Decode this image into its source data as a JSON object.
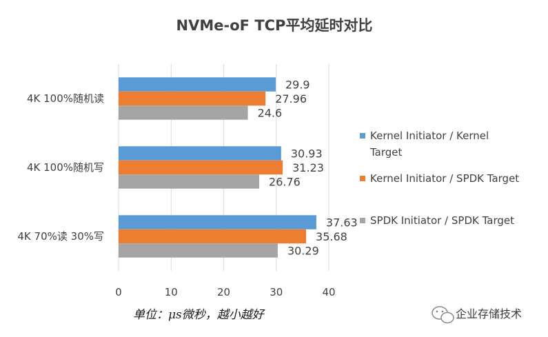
{
  "chart_data": {
    "type": "bar",
    "orientation": "horizontal",
    "title": "NVMe-oF TCP平均延时对比",
    "categories": [
      "4K 100%随机读",
      "4K 100%随机写",
      "4K 70%读 30%写"
    ],
    "series": [
      {
        "name": "Kernel Initiator / Kernel Target",
        "color": "#5b9bd5",
        "values": [
          29.9,
          30.93,
          37.63
        ]
      },
      {
        "name": "Kernel Initiator / SPDK Target",
        "color": "#ed7d31",
        "values": [
          27.96,
          31.23,
          35.68
        ]
      },
      {
        "name": "SPDK Initiator / SPDK Target",
        "color": "#a5a5a5",
        "values": [
          24.6,
          26.76,
          30.29
        ]
      }
    ],
    "value_labels": [
      [
        "29.9",
        "30.93",
        "37.63"
      ],
      [
        "27.96",
        "31.23",
        "35.68"
      ],
      [
        "24.6",
        "26.76",
        "30.29"
      ]
    ],
    "xlim": [
      0,
      40
    ],
    "xticks": [
      0,
      10,
      20,
      30,
      40
    ],
    "grid": true,
    "legend_position": "right"
  },
  "note": "单位：μs微秒，越小越好",
  "watermark": "企业存储技术"
}
